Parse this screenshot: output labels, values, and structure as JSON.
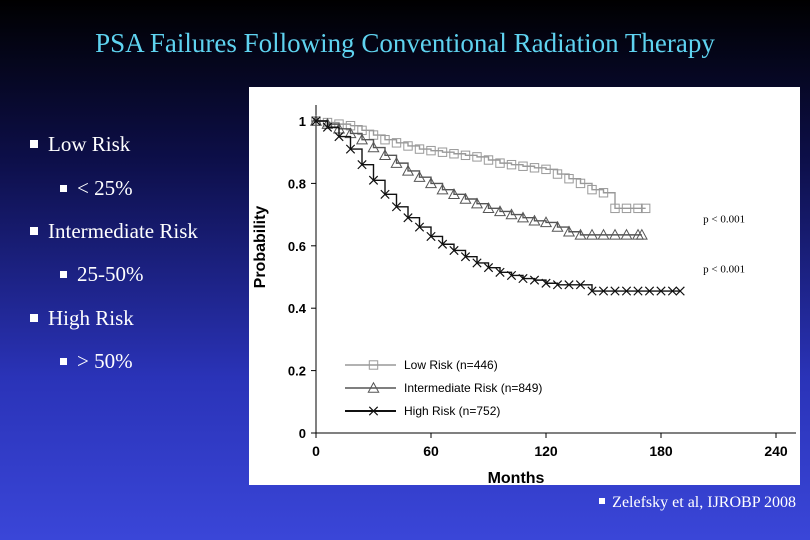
{
  "slide": {
    "title": "PSA Failures Following Conventional Radiation Therapy",
    "bullets": [
      {
        "label": "Low Risk",
        "sub": "< 25%"
      },
      {
        "label": "Intermediate Risk",
        "sub": "25-50%"
      },
      {
        "label": "High Risk",
        "sub": "> 50%"
      }
    ],
    "citation": "Zelefsky et al, IJROBP 2008"
  },
  "chart_data": {
    "type": "line",
    "title": "",
    "xlabel": "Months",
    "ylabel": "Probability",
    "xlim": [
      0,
      240
    ],
    "ylim": [
      0,
      1
    ],
    "xticks": [
      0,
      60,
      120,
      180,
      240
    ],
    "yticks": [
      0,
      0.2,
      0.4,
      0.6,
      0.8,
      1
    ],
    "grid": false,
    "legend_position": "bottom-left",
    "annotations": [
      {
        "text": "p < 0.001",
        "x": 202,
        "y": 0.675
      },
      {
        "text": "p < 0.001",
        "x": 202,
        "y": 0.515
      }
    ],
    "series": [
      {
        "name": "Low Risk (n=446)",
        "marker": "square",
        "x": [
          0,
          6,
          12,
          18,
          24,
          30,
          36,
          42,
          48,
          54,
          60,
          66,
          72,
          78,
          84,
          90,
          96,
          102,
          108,
          114,
          120,
          126,
          132,
          138,
          144,
          150,
          156,
          162,
          168,
          172
        ],
        "y": [
          1.0,
          0.995,
          0.99,
          0.985,
          0.97,
          0.955,
          0.94,
          0.93,
          0.92,
          0.91,
          0.905,
          0.9,
          0.895,
          0.89,
          0.885,
          0.875,
          0.865,
          0.86,
          0.855,
          0.85,
          0.845,
          0.83,
          0.815,
          0.8,
          0.78,
          0.77,
          0.72,
          0.72,
          0.72,
          0.72
        ]
      },
      {
        "name": "Intermediate Risk (n=849)",
        "marker": "triangle",
        "x": [
          0,
          6,
          12,
          18,
          24,
          30,
          36,
          42,
          48,
          54,
          60,
          66,
          72,
          78,
          84,
          90,
          96,
          102,
          108,
          114,
          120,
          126,
          132,
          138,
          144,
          150,
          156,
          162,
          168,
          170
        ],
        "y": [
          1.0,
          0.99,
          0.975,
          0.96,
          0.94,
          0.915,
          0.89,
          0.865,
          0.84,
          0.82,
          0.8,
          0.78,
          0.765,
          0.75,
          0.735,
          0.72,
          0.71,
          0.7,
          0.69,
          0.68,
          0.675,
          0.66,
          0.645,
          0.635,
          0.635,
          0.635,
          0.635,
          0.635,
          0.635,
          0.635
        ]
      },
      {
        "name": "High Risk (n=752)",
        "marker": "x",
        "x": [
          0,
          6,
          12,
          18,
          24,
          30,
          36,
          42,
          48,
          54,
          60,
          66,
          72,
          78,
          84,
          90,
          96,
          102,
          108,
          114,
          120,
          126,
          132,
          138,
          144,
          150,
          156,
          162,
          168,
          174,
          180,
          186,
          190
        ],
        "y": [
          1.0,
          0.98,
          0.95,
          0.91,
          0.86,
          0.81,
          0.765,
          0.725,
          0.69,
          0.66,
          0.63,
          0.605,
          0.585,
          0.565,
          0.545,
          0.53,
          0.515,
          0.505,
          0.495,
          0.49,
          0.48,
          0.475,
          0.475,
          0.475,
          0.455,
          0.455,
          0.455,
          0.455,
          0.455,
          0.455,
          0.455,
          0.455,
          0.455
        ]
      }
    ]
  }
}
